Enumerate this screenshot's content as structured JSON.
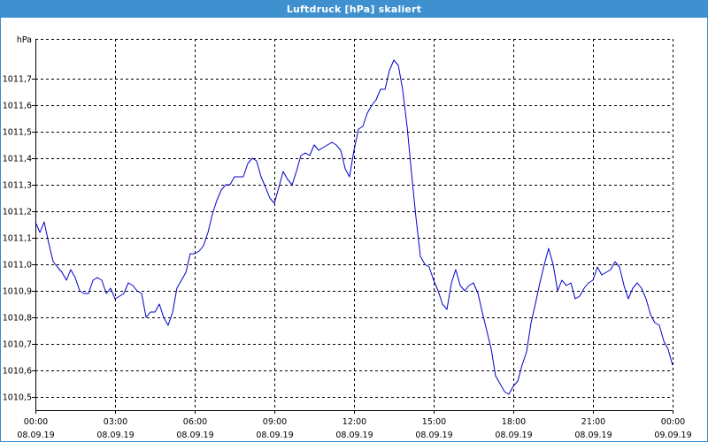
{
  "window": {
    "title": "Luftdruck [hPa] skaliert"
  },
  "colors": {
    "title_bar": "#3f90cf",
    "series": "#0000c8",
    "grid": "#000000"
  },
  "chart_data": {
    "type": "line",
    "ylabel": "hPa",
    "ylim": [
      1010.45,
      1011.85
    ],
    "y_ticks": [
      "1010,5",
      "1010,6",
      "1010,7",
      "1010,8",
      "1010,9",
      "1011,0",
      "1011,1",
      "1011,2",
      "1011,3",
      "1011,4",
      "1011,5",
      "1011,6",
      "1011,7"
    ],
    "y_tick_values": [
      1010.5,
      1010.6,
      1010.7,
      1010.8,
      1010.9,
      1011.0,
      1011.1,
      1011.2,
      1011.3,
      1011.4,
      1011.5,
      1011.6,
      1011.7
    ],
    "x_ticks": [
      {
        "time": "00:00",
        "date": "08.09.19"
      },
      {
        "time": "03:00",
        "date": "08.09.19"
      },
      {
        "time": "06:00",
        "date": "08.09.19"
      },
      {
        "time": "09:00",
        "date": "08.09.19"
      },
      {
        "time": "12:00",
        "date": "08.09.19"
      },
      {
        "time": "15:00",
        "date": "08.09.19"
      },
      {
        "time": "18:00",
        "date": "08.09.19"
      },
      {
        "time": "21:00",
        "date": "08.09.19"
      },
      {
        "time": "00:00",
        "date": "09.09.19"
      }
    ],
    "x_hours": [
      0,
      3,
      6,
      9,
      12,
      15,
      18,
      21,
      24
    ],
    "xlim_hours": [
      0,
      24
    ],
    "grid": true,
    "series": [
      {
        "x_hours": [
          0.0,
          0.17,
          0.33,
          0.5,
          0.67,
          0.83,
          1.0,
          1.17,
          1.33,
          1.5,
          1.67,
          1.83,
          2.0,
          2.17,
          2.33,
          2.5,
          2.67,
          2.83,
          3.0,
          3.17,
          3.33,
          3.5,
          3.67,
          3.83,
          4.0,
          4.17,
          4.33,
          4.5,
          4.67,
          4.83,
          5.0,
          5.17,
          5.33,
          5.5,
          5.67,
          5.83,
          6.0,
          6.17,
          6.33,
          6.5,
          6.67,
          6.83,
          7.0,
          7.17,
          7.33,
          7.5,
          7.67,
          7.83,
          8.0,
          8.17,
          8.33,
          8.5,
          8.67,
          8.83,
          9.0,
          9.17,
          9.33,
          9.5,
          9.67,
          9.83,
          10.0,
          10.17,
          10.33,
          10.5,
          10.67,
          10.83,
          11.0,
          11.17,
          11.33,
          11.5,
          11.67,
          11.83,
          12.0,
          12.17,
          12.33,
          12.5,
          12.67,
          12.83,
          13.0,
          13.17,
          13.33,
          13.5,
          13.67,
          13.83,
          14.0,
          14.17,
          14.33,
          14.5,
          14.67,
          14.83,
          15.0,
          15.17,
          15.33,
          15.5,
          15.67,
          15.83,
          16.0,
          16.17,
          16.33,
          16.5,
          16.67,
          16.83,
          17.0,
          17.17,
          17.33,
          17.5,
          17.67,
          17.83,
          18.0,
          18.17,
          18.33,
          18.5,
          18.67,
          18.83,
          19.0,
          19.17,
          19.33,
          19.5,
          19.67,
          19.83,
          20.0,
          20.17,
          20.33,
          20.5,
          20.67,
          20.83,
          21.0,
          21.17,
          21.33,
          21.5,
          21.67,
          21.83,
          22.0,
          22.17,
          22.33,
          22.5,
          22.67,
          22.83,
          23.0,
          23.17,
          23.33,
          23.5,
          23.67,
          23.83,
          24.0
        ],
        "values": [
          1011.16,
          1011.12,
          1011.16,
          1011.08,
          1011.01,
          1010.99,
          1010.97,
          1010.94,
          1010.98,
          1010.95,
          1010.9,
          1010.89,
          1010.89,
          1010.94,
          1010.95,
          1010.94,
          1010.89,
          1010.91,
          1010.87,
          1010.88,
          1010.89,
          1010.93,
          1010.92,
          1010.9,
          1010.89,
          1010.8,
          1010.82,
          1010.82,
          1010.85,
          1010.8,
          1010.77,
          1010.82,
          1010.91,
          1010.94,
          1010.97,
          1011.04,
          1011.04,
          1011.05,
          1011.07,
          1011.12,
          1011.19,
          1011.24,
          1011.28,
          1011.3,
          1011.3,
          1011.33,
          1011.33,
          1011.33,
          1011.38,
          1011.4,
          1011.39,
          1011.33,
          1011.29,
          1011.25,
          1011.23,
          1011.29,
          1011.35,
          1011.32,
          1011.3,
          1011.35,
          1011.41,
          1011.42,
          1011.41,
          1011.45,
          1011.43,
          1011.44,
          1011.45,
          1011.46,
          1011.45,
          1011.43,
          1011.36,
          1011.33,
          1011.43,
          1011.51,
          1011.52,
          1011.57,
          1011.6,
          1011.62,
          1011.66,
          1011.66,
          1011.73,
          1011.77,
          1011.75,
          1011.66,
          1011.52,
          1011.34,
          1011.18,
          1011.03,
          1011.0,
          1010.99,
          1010.94,
          1010.9,
          1010.85,
          1010.83,
          1010.93,
          1010.98,
          1010.92,
          1010.9,
          1010.92,
          1010.93,
          1010.89,
          1010.82,
          1010.75,
          1010.68,
          1010.58,
          1010.55,
          1010.52,
          1010.51,
          1010.54,
          1010.56,
          1010.62,
          1010.67,
          1010.78,
          1010.85,
          1010.93,
          1011.0,
          1011.06,
          1011.0,
          1010.9,
          1010.94,
          1010.92,
          1010.93,
          1010.87,
          1010.88,
          1010.91,
          1010.93,
          1010.94,
          1010.99,
          1010.96,
          1010.97,
          1010.98,
          1011.01,
          1010.99,
          1010.92,
          1010.87,
          1010.91,
          1010.93,
          1010.91,
          1010.87,
          1010.81,
          1010.78,
          1010.77,
          1010.71,
          1010.68,
          1010.62
        ]
      }
    ]
  }
}
